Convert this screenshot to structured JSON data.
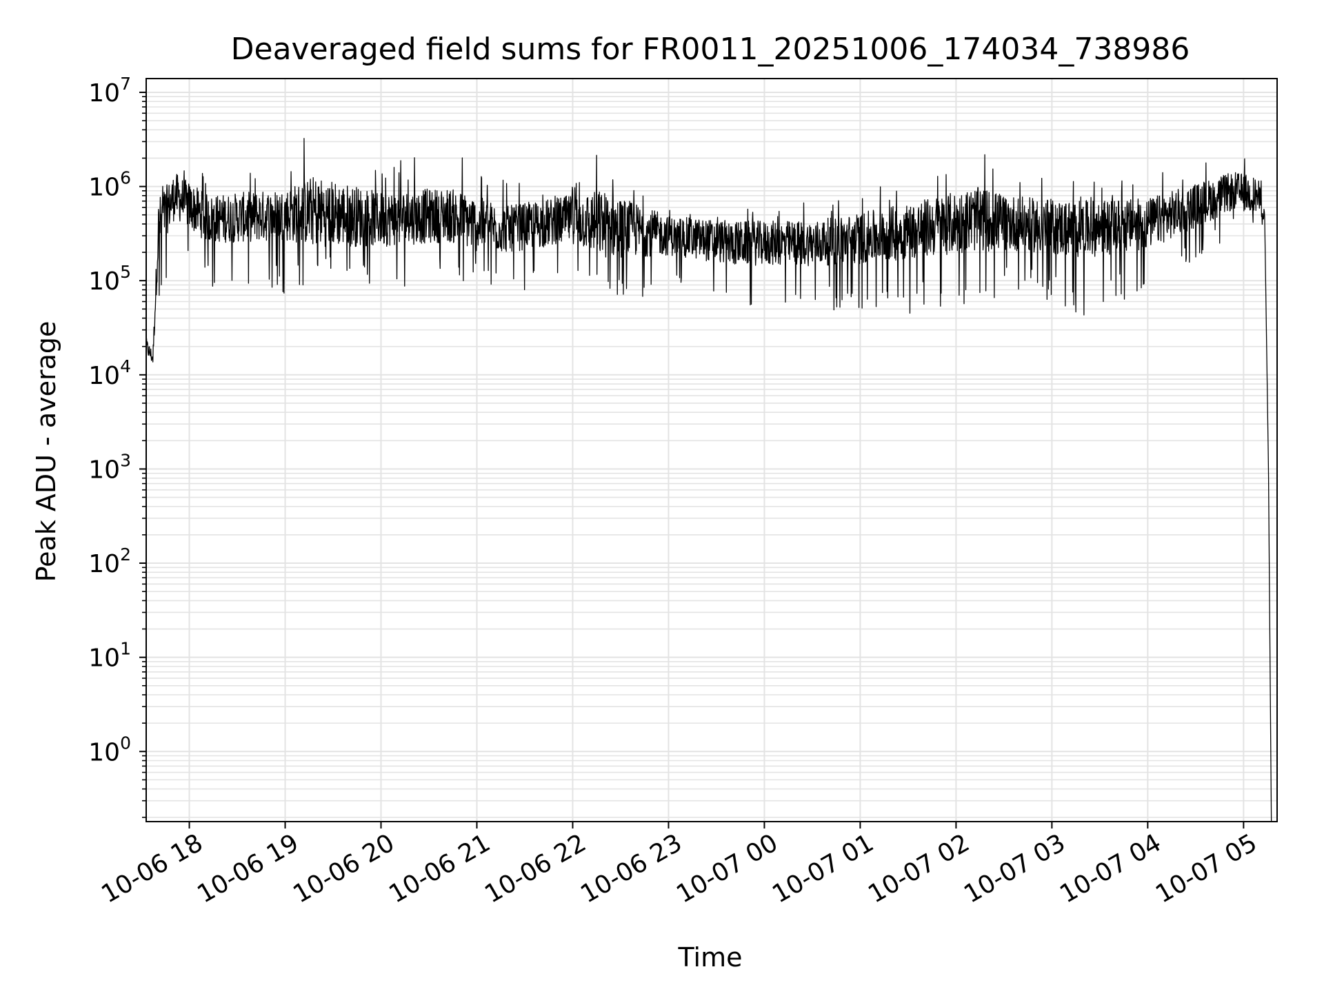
{
  "chart_data": {
    "type": "line",
    "title": "Deaveraged field sums for FR0011_20251006_174034_738986",
    "xlabel": "Time",
    "ylabel": "Peak ADU - average",
    "yscale": "log",
    "ylim": [
      0.18,
      14000000
    ],
    "xlim_hours": [
      17.55,
      29.35
    ],
    "grid": true,
    "grid_minor": true,
    "line_color": "#000000",
    "grid_color": "#e3e3e3",
    "y_ticks": [
      {
        "base": "10",
        "exp": "0",
        "value": 1
      },
      {
        "base": "10",
        "exp": "1",
        "value": 10
      },
      {
        "base": "10",
        "exp": "2",
        "value": 100
      },
      {
        "base": "10",
        "exp": "3",
        "value": 1000
      },
      {
        "base": "10",
        "exp": "4",
        "value": 10000
      },
      {
        "base": "10",
        "exp": "5",
        "value": 100000
      },
      {
        "base": "10",
        "exp": "6",
        "value": 1000000
      },
      {
        "base": "10",
        "exp": "7",
        "value": 10000000
      }
    ],
    "x_ticks": [
      {
        "label": "10-06 18",
        "hour": 18
      },
      {
        "label": "10-06 19",
        "hour": 19
      },
      {
        "label": "10-06 20",
        "hour": 20
      },
      {
        "label": "10-06 21",
        "hour": 21
      },
      {
        "label": "10-06 22",
        "hour": 22
      },
      {
        "label": "10-06 23",
        "hour": 23
      },
      {
        "label": "10-07 00",
        "hour": 24
      },
      {
        "label": "10-07 01",
        "hour": 25
      },
      {
        "label": "10-07 02",
        "hour": 26
      },
      {
        "label": "10-07 03",
        "hour": 27
      },
      {
        "label": "10-07 04",
        "hour": 28
      },
      {
        "label": "10-07 05",
        "hour": 29
      }
    ],
    "series": [
      {
        "name": "deaveraged field sum",
        "note": "dense noisy series approximated by piecewise envelope; hour -> typical value, low, high",
        "envelope": [
          {
            "hour": 17.55,
            "mid": 20000,
            "low": 9000,
            "high": 25000
          },
          {
            "hour": 17.62,
            "mid": 15000,
            "low": 9000,
            "high": 20000
          },
          {
            "hour": 17.68,
            "mid": 400000,
            "low": 40000,
            "high": 900000
          },
          {
            "hour": 17.85,
            "mid": 800000,
            "low": 200000,
            "high": 3000000
          },
          {
            "hour": 18.2,
            "mid": 450000,
            "low": 80000,
            "high": 1300000
          },
          {
            "hour": 19.0,
            "mid": 500000,
            "low": 70000,
            "high": 1500000
          },
          {
            "hour": 19.3,
            "mid": 550000,
            "low": 100000,
            "high": 6300000
          },
          {
            "hour": 20.0,
            "mid": 450000,
            "low": 80000,
            "high": 2000000
          },
          {
            "hour": 20.7,
            "mid": 500000,
            "low": 100000,
            "high": 2400000
          },
          {
            "hour": 21.0,
            "mid": 400000,
            "low": 90000,
            "high": 2300000
          },
          {
            "hour": 21.3,
            "mid": 350000,
            "low": 80000,
            "high": 1200000
          },
          {
            "hour": 22.0,
            "mid": 450000,
            "low": 70000,
            "high": 1200000
          },
          {
            "hour": 22.3,
            "mid": 400000,
            "low": 55000,
            "high": 3000000
          },
          {
            "hour": 23.0,
            "mid": 300000,
            "low": 70000,
            "high": 700000
          },
          {
            "hour": 23.7,
            "mid": 250000,
            "low": 45000,
            "high": 600000
          },
          {
            "hour": 24.5,
            "mid": 250000,
            "low": 50000,
            "high": 700000
          },
          {
            "hour": 25.0,
            "mid": 280000,
            "low": 45000,
            "high": 900000
          },
          {
            "hour": 25.6,
            "mid": 350000,
            "low": 45000,
            "high": 1300000
          },
          {
            "hour": 26.2,
            "mid": 450000,
            "low": 60000,
            "high": 2600000
          },
          {
            "hour": 26.7,
            "mid": 400000,
            "low": 70000,
            "high": 1600000
          },
          {
            "hour": 27.3,
            "mid": 350000,
            "low": 42000,
            "high": 1200000
          },
          {
            "hour": 28.0,
            "mid": 400000,
            "low": 70000,
            "high": 1400000
          },
          {
            "hour": 28.9,
            "mid": 900000,
            "low": 300000,
            "high": 2800000
          },
          {
            "hour": 29.15,
            "mid": 800000,
            "low": 350000,
            "high": 3000000
          },
          {
            "hour": 29.22,
            "mid": 500000,
            "low": 300000,
            "high": 600000
          },
          {
            "hour": 29.26,
            "mid": 1000,
            "low": 1000,
            "high": 1000
          },
          {
            "hour": 29.29,
            "mid": 0.18,
            "low": 0.18,
            "high": 0.18
          }
        ]
      }
    ]
  }
}
